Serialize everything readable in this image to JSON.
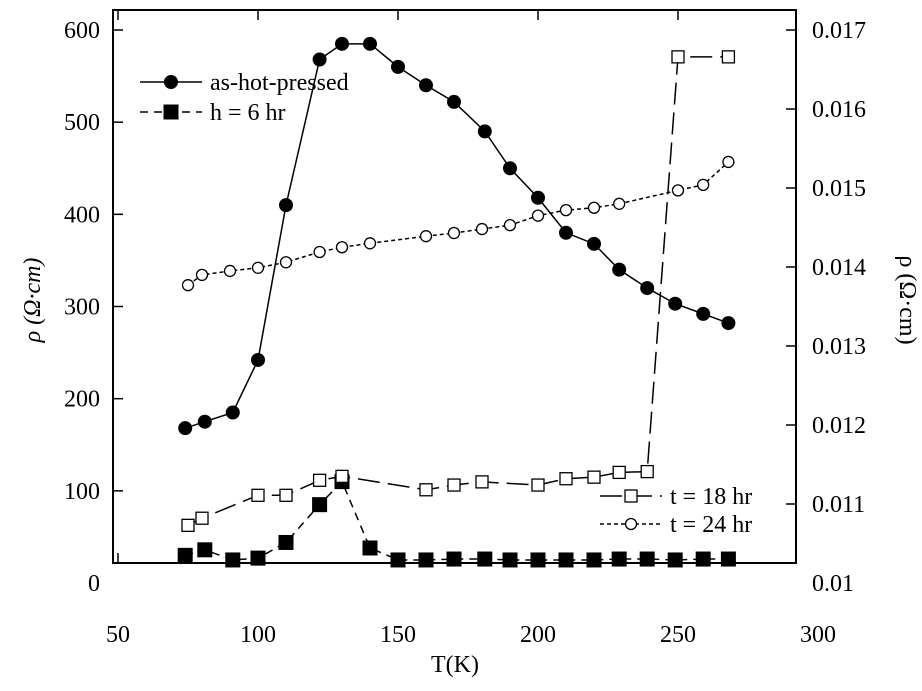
{
  "chart_data": {
    "type": "line",
    "xlabel": "T(K)",
    "ylabel_left": "ρ (Ω·cm)",
    "ylabel_right": "ρ (Ω·cm)",
    "xlim": [
      50,
      300
    ],
    "ylim_left": [
      0,
      600
    ],
    "ylim_right": [
      0.01,
      0.017
    ],
    "x_ticks": [
      "50",
      "100",
      "150",
      "200",
      "250",
      "300"
    ],
    "x_tick_values": [
      50,
      100,
      150,
      200,
      250,
      300
    ],
    "y_left_ticks": [
      "0",
      "100",
      "200",
      "300",
      "400",
      "500",
      "600"
    ],
    "y_left_tick_values": [
      0,
      100,
      200,
      300,
      400,
      500,
      600
    ],
    "y_right_ticks": [
      "0.01",
      "0.011",
      "0.012",
      "0.013",
      "0.014",
      "0.015",
      "0.016",
      "0.017"
    ],
    "y_right_tick_values": [
      0.01,
      0.011,
      0.012,
      0.013,
      0.014,
      0.015,
      0.016,
      0.017
    ],
    "grid": false,
    "series": [
      {
        "name": "as-hot-pressed",
        "axis": "left",
        "marker": "filled-circle",
        "line": "solid",
        "legend": "top-left",
        "x": [
          74,
          81,
          91,
          100,
          110,
          122,
          130,
          140,
          150,
          160,
          170,
          181,
          190,
          200,
          210,
          220,
          229,
          239,
          249,
          259,
          268
        ],
        "y": [
          168,
          175,
          185,
          242,
          410,
          568,
          585,
          585,
          560,
          540,
          522,
          490,
          450,
          418,
          380,
          368,
          340,
          320,
          303,
          292,
          282
        ]
      },
      {
        "name": "h = 6 hr",
        "axis": "left",
        "marker": "filled-square",
        "line": "dashed",
        "legend": "top-left",
        "x": [
          74,
          81,
          91,
          100,
          110,
          122,
          130,
          140,
          150,
          160,
          170,
          181,
          190,
          200,
          210,
          220,
          229,
          239,
          249,
          259,
          268
        ],
        "y": [
          30,
          36,
          25,
          27,
          44,
          85,
          110,
          38,
          25,
          25,
          26,
          26,
          25,
          25,
          25,
          25,
          26,
          26,
          25,
          26,
          26
        ]
      },
      {
        "name": "t = 18 hr",
        "axis": "right",
        "marker": "open-square",
        "line": "long-dash",
        "legend": "bottom-right",
        "x": [
          75,
          80,
          100,
          110,
          122,
          130,
          160,
          170,
          180,
          200,
          210,
          220,
          229,
          239,
          250,
          268
        ],
        "y": [
          0.01073,
          0.01082,
          0.01111,
          0.01111,
          0.0113,
          0.01135,
          0.01118,
          0.01124,
          0.01128,
          0.01124,
          0.01132,
          0.01134,
          0.0114,
          0.01141,
          0.01666,
          0.01666
        ]
      },
      {
        "name": "t = 24 hr",
        "axis": "right",
        "marker": "open-circle",
        "line": "short-dash",
        "legend": "bottom-right",
        "x": [
          75,
          80,
          90,
          100,
          110,
          122,
          130,
          140,
          160,
          170,
          180,
          190,
          200,
          210,
          220,
          229,
          250,
          259,
          268
        ],
        "y": [
          0.01377,
          0.0139,
          0.01395,
          0.01399,
          0.01406,
          0.01419,
          0.01425,
          0.0143,
          0.01439,
          0.01443,
          0.01448,
          0.01453,
          0.01465,
          0.01472,
          0.01475,
          0.0148,
          0.01497,
          0.01504,
          0.01533
        ]
      }
    ]
  }
}
